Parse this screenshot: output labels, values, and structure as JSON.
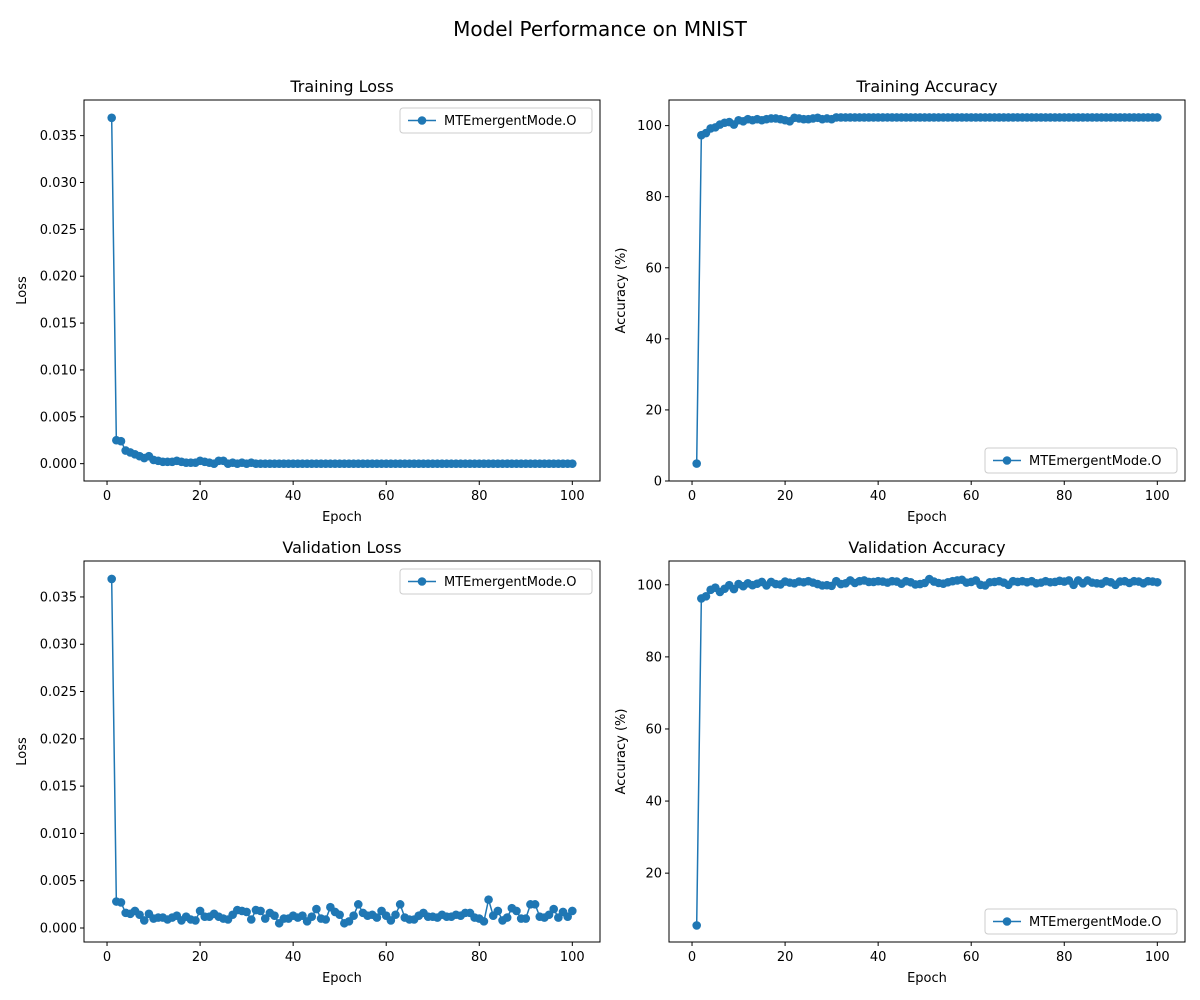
{
  "figure": {
    "title": "Model Performance on MNIST"
  },
  "colors": {
    "series": "#1f77b4",
    "axes": "#000000",
    "legend_border": "#cccccc"
  },
  "chart_data": [
    {
      "type": "line",
      "title": "Training Loss",
      "xlabel": "Epoch",
      "ylabel": "Loss",
      "xlim": [
        -4.95,
        105.95
      ],
      "ylim": [
        -0.00185,
        0.0388
      ],
      "xticks": [
        0,
        20,
        40,
        60,
        80,
        100
      ],
      "xtick_labels": [
        "0",
        "20",
        "40",
        "60",
        "80",
        "100"
      ],
      "yticks": [
        0,
        0.005,
        0.01,
        0.015,
        0.02,
        0.025,
        0.03,
        0.035
      ],
      "ytick_labels": [
        "0.000",
        "0.005",
        "0.010",
        "0.015",
        "0.020",
        "0.025",
        "0.030",
        "0.035"
      ],
      "legend_position": "upper right",
      "grid": false,
      "series": [
        {
          "name": "MTEmergentMode.O",
          "marker": "circle",
          "x": [
            1,
            2,
            3,
            4,
            5,
            6,
            7,
            8,
            9,
            10,
            11,
            12,
            13,
            14,
            15,
            16,
            17,
            18,
            19,
            20,
            21,
            22,
            23,
            24,
            25,
            26,
            27,
            28,
            29,
            30,
            31,
            32,
            33,
            34,
            35,
            36,
            37,
            38,
            39,
            40,
            41,
            42,
            43,
            44,
            45,
            46,
            47,
            48,
            49,
            50,
            51,
            52,
            53,
            54,
            55,
            56,
            57,
            58,
            59,
            60,
            61,
            62,
            63,
            64,
            65,
            66,
            67,
            68,
            69,
            70,
            71,
            72,
            73,
            74,
            75,
            76,
            77,
            78,
            79,
            80,
            81,
            82,
            83,
            84,
            85,
            86,
            87,
            88,
            89,
            90,
            91,
            92,
            93,
            94,
            95,
            96,
            97,
            98,
            99,
            100
          ],
          "y": [
            0.0369,
            0.0025,
            0.0024,
            0.0014,
            0.0012,
            0.001,
            0.0008,
            0.0006,
            0.0008,
            0.0004,
            0.0003,
            0.0002,
            0.0002,
            0.0002,
            0.0003,
            0.0002,
            0.0001,
            0.0001,
            0.0001,
            0.0003,
            0.0002,
            0.0001,
            0.0,
            0.0003,
            0.0003,
            0.0,
            0.0001,
            0.0,
            0.0001,
            0.0,
            0.0001,
            0.0,
            0.0,
            0.0,
            0.0,
            0.0,
            0.0,
            0.0,
            0.0,
            0.0,
            0.0,
            0.0,
            0.0,
            0.0,
            0.0,
            0.0,
            0.0,
            0.0,
            0.0,
            0.0,
            0.0,
            0.0,
            0.0,
            0.0,
            0.0,
            0.0,
            0.0,
            0.0,
            0.0,
            0.0,
            0.0,
            0.0,
            0.0,
            0.0,
            0.0,
            0.0,
            0.0,
            0.0,
            0.0,
            0.0,
            0.0,
            0.0,
            0.0,
            0.0,
            0.0,
            0.0,
            0.0,
            0.0,
            0.0,
            0.0,
            0.0,
            0.0,
            0.0,
            0.0,
            0.0,
            0.0,
            0.0,
            0.0,
            0.0,
            0.0,
            0.0,
            0.0,
            0.0,
            0.0,
            0.0,
            0.0,
            0.0,
            0.0,
            0.0,
            0.0
          ]
        }
      ]
    },
    {
      "type": "line",
      "title": "Training Accuracy",
      "xlabel": "Epoch",
      "ylabel": "Accuracy (%)",
      "xlim": [
        -4.95,
        105.95
      ],
      "ylim": [
        0,
        107.2
      ],
      "xticks": [
        0,
        20,
        40,
        60,
        80,
        100
      ],
      "xtick_labels": [
        "0",
        "20",
        "40",
        "60",
        "80",
        "100"
      ],
      "yticks": [
        0,
        20,
        40,
        60,
        80,
        100
      ],
      "ytick_labels": [
        "0",
        "20",
        "40",
        "60",
        "80",
        "100"
      ],
      "legend_position": "lower right",
      "grid": false,
      "series": [
        {
          "name": "MTEmergentMode.O",
          "marker": "circle",
          "x": [
            1,
            2,
            3,
            4,
            5,
            6,
            7,
            8,
            9,
            10,
            11,
            12,
            13,
            14,
            15,
            16,
            17,
            18,
            19,
            20,
            21,
            22,
            23,
            24,
            25,
            26,
            27,
            28,
            29,
            30,
            31,
            32,
            33,
            34,
            35,
            36,
            37,
            38,
            39,
            40,
            41,
            42,
            43,
            44,
            45,
            46,
            47,
            48,
            49,
            50,
            51,
            52,
            53,
            54,
            55,
            56,
            57,
            58,
            59,
            60,
            61,
            62,
            63,
            64,
            65,
            66,
            67,
            68,
            69,
            70,
            71,
            72,
            73,
            74,
            75,
            76,
            77,
            78,
            79,
            80,
            81,
            82,
            83,
            84,
            85,
            86,
            87,
            88,
            89,
            90,
            91,
            92,
            93,
            94,
            95,
            96,
            97,
            98,
            99,
            100
          ],
          "y": [
            4.9,
            97.3,
            97.9,
            99.2,
            99.5,
            100.3,
            100.8,
            101.0,
            100.3,
            101.5,
            101.2,
            101.8,
            101.5,
            101.8,
            101.5,
            101.8,
            102.0,
            102.0,
            101.8,
            101.5,
            101.2,
            102.2,
            102.0,
            101.8,
            101.8,
            102.0,
            102.2,
            101.8,
            102.0,
            101.8,
            102.3,
            102.3,
            102.3,
            102.3,
            102.3,
            102.3,
            102.3,
            102.3,
            102.3,
            102.3,
            102.3,
            102.3,
            102.3,
            102.3,
            102.3,
            102.3,
            102.3,
            102.3,
            102.3,
            102.3,
            102.3,
            102.3,
            102.3,
            102.3,
            102.3,
            102.3,
            102.3,
            102.3,
            102.3,
            102.3,
            102.3,
            102.3,
            102.3,
            102.3,
            102.3,
            102.3,
            102.3,
            102.3,
            102.3,
            102.3,
            102.3,
            102.3,
            102.3,
            102.3,
            102.3,
            102.3,
            102.3,
            102.3,
            102.3,
            102.3,
            102.3,
            102.3,
            102.3,
            102.3,
            102.3,
            102.3,
            102.3,
            102.3,
            102.3,
            102.3,
            102.3,
            102.3,
            102.3,
            102.3,
            102.3,
            102.3,
            102.3,
            102.3,
            102.3,
            102.3
          ]
        }
      ]
    },
    {
      "type": "line",
      "title": "Validation Loss",
      "xlabel": "Epoch",
      "ylabel": "Loss",
      "xlim": [
        -4.95,
        105.95
      ],
      "ylim": [
        -0.00148,
        0.0388
      ],
      "xticks": [
        0,
        20,
        40,
        60,
        80,
        100
      ],
      "xtick_labels": [
        "0",
        "20",
        "40",
        "60",
        "80",
        "100"
      ],
      "yticks": [
        0,
        0.005,
        0.01,
        0.015,
        0.02,
        0.025,
        0.03,
        0.035
      ],
      "ytick_labels": [
        "0.000",
        "0.005",
        "0.010",
        "0.015",
        "0.020",
        "0.025",
        "0.030",
        "0.035"
      ],
      "legend_position": "upper right",
      "grid": false,
      "series": [
        {
          "name": "MTEmergentMode.O",
          "marker": "circle",
          "x": [
            1,
            2,
            3,
            4,
            5,
            6,
            7,
            8,
            9,
            10,
            11,
            12,
            13,
            14,
            15,
            16,
            17,
            18,
            19,
            20,
            21,
            22,
            23,
            24,
            25,
            26,
            27,
            28,
            29,
            30,
            31,
            32,
            33,
            34,
            35,
            36,
            37,
            38,
            39,
            40,
            41,
            42,
            43,
            44,
            45,
            46,
            47,
            48,
            49,
            50,
            51,
            52,
            53,
            54,
            55,
            56,
            57,
            58,
            59,
            60,
            61,
            62,
            63,
            64,
            65,
            66,
            67,
            68,
            69,
            70,
            71,
            72,
            73,
            74,
            75,
            76,
            77,
            78,
            79,
            80,
            81,
            82,
            83,
            84,
            85,
            86,
            87,
            88,
            89,
            90,
            91,
            92,
            93,
            94,
            95,
            96,
            97,
            98,
            99,
            100
          ],
          "y": [
            0.0369,
            0.0028,
            0.0027,
            0.0016,
            0.0015,
            0.0018,
            0.0014,
            0.0008,
            0.0015,
            0.001,
            0.0011,
            0.0011,
            0.0009,
            0.0011,
            0.0013,
            0.0008,
            0.0012,
            0.0009,
            0.0008,
            0.0018,
            0.0012,
            0.0012,
            0.0015,
            0.0012,
            0.001,
            0.0009,
            0.0014,
            0.0019,
            0.0018,
            0.0017,
            0.0009,
            0.0019,
            0.0018,
            0.001,
            0.0016,
            0.0013,
            0.0005,
            0.001,
            0.001,
            0.0013,
            0.0011,
            0.0013,
            0.0007,
            0.0012,
            0.002,
            0.001,
            0.0009,
            0.0022,
            0.0017,
            0.0014,
            0.0005,
            0.0007,
            0.0013,
            0.0025,
            0.0016,
            0.0013,
            0.0014,
            0.0011,
            0.0018,
            0.0013,
            0.0008,
            0.0014,
            0.0025,
            0.0011,
            0.0009,
            0.0009,
            0.0013,
            0.0016,
            0.0012,
            0.0012,
            0.0011,
            0.0014,
            0.0012,
            0.0012,
            0.0014,
            0.0013,
            0.0016,
            0.0016,
            0.0011,
            0.001,
            0.0007,
            0.003,
            0.0013,
            0.0018,
            0.0008,
            0.0011,
            0.0021,
            0.0018,
            0.001,
            0.001,
            0.0025,
            0.0025,
            0.0012,
            0.0011,
            0.0014,
            0.002,
            0.0011,
            0.0017,
            0.0012,
            0.0018
          ]
        }
      ]
    },
    {
      "type": "line",
      "title": "Validation Accuracy",
      "xlabel": "Epoch",
      "ylabel": "Accuracy (%)",
      "xlim": [
        -4.95,
        105.95
      ],
      "ylim": [
        0.9,
        106.6
      ],
      "xticks": [
        0,
        20,
        40,
        60,
        80,
        100
      ],
      "xtick_labels": [
        "0",
        "20",
        "40",
        "60",
        "80",
        "100"
      ],
      "yticks": [
        20,
        40,
        60,
        80,
        100
      ],
      "ytick_labels": [
        "20",
        "40",
        "60",
        "80",
        "100"
      ],
      "legend_position": "lower right",
      "grid": false,
      "series": [
        {
          "name": "MTEmergentMode.O",
          "marker": "circle",
          "x": [
            1,
            2,
            3,
            4,
            5,
            6,
            7,
            8,
            9,
            10,
            11,
            12,
            13,
            14,
            15,
            16,
            17,
            18,
            19,
            20,
            21,
            22,
            23,
            24,
            25,
            26,
            27,
            28,
            29,
            30,
            31,
            32,
            33,
            34,
            35,
            36,
            37,
            38,
            39,
            40,
            41,
            42,
            43,
            44,
            45,
            46,
            47,
            48,
            49,
            50,
            51,
            52,
            53,
            54,
            55,
            56,
            57,
            58,
            59,
            60,
            61,
            62,
            63,
            64,
            65,
            66,
            67,
            68,
            69,
            70,
            71,
            72,
            73,
            74,
            75,
            76,
            77,
            78,
            79,
            80,
            81,
            82,
            83,
            84,
            85,
            86,
            87,
            88,
            89,
            90,
            91,
            92,
            93,
            94,
            95,
            96,
            97,
            98,
            99,
            100
          ],
          "y": [
            5.5,
            96.2,
            96.8,
            98.6,
            99.2,
            98.0,
            98.9,
            99.9,
            98.8,
            100.2,
            99.6,
            100.4,
            99.9,
            100.3,
            100.8,
            99.8,
            100.8,
            100.2,
            100.1,
            100.9,
            100.6,
            100.4,
            100.9,
            100.7,
            101.0,
            100.6,
            100.2,
            99.8,
            99.9,
            99.7,
            101.0,
            100.2,
            100.4,
            101.2,
            100.5,
            101.0,
            101.2,
            100.8,
            100.8,
            101.0,
            100.9,
            100.6,
            101.0,
            100.9,
            100.3,
            101.0,
            100.7,
            100.1,
            100.2,
            100.5,
            101.6,
            100.9,
            100.5,
            100.3,
            100.7,
            101.0,
            101.2,
            101.4,
            100.6,
            100.8,
            101.2,
            100.0,
            99.8,
            100.7,
            100.8,
            101.0,
            100.6,
            100.0,
            101.0,
            100.8,
            101.0,
            100.7,
            101.0,
            100.4,
            100.6,
            101.0,
            100.7,
            100.8,
            101.1,
            100.9,
            101.2,
            100.0,
            101.2,
            100.4,
            101.2,
            100.6,
            100.4,
            100.3,
            101.0,
            100.7,
            100.0,
            100.9,
            101.0,
            100.5,
            101.0,
            100.9,
            100.4,
            101.0,
            100.9,
            100.7
          ]
        }
      ]
    }
  ]
}
